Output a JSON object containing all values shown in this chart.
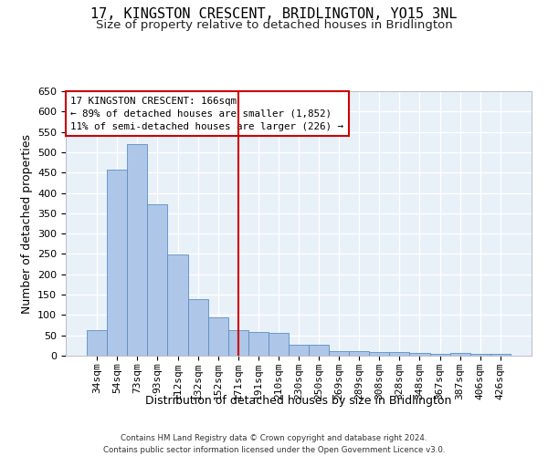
{
  "title": "17, KINGSTON CRESCENT, BRIDLINGTON, YO15 3NL",
  "subtitle": "Size of property relative to detached houses in Bridlington",
  "xlabel": "Distribution of detached houses by size in Bridlington",
  "ylabel": "Number of detached properties",
  "categories": [
    "34sqm",
    "54sqm",
    "73sqm",
    "93sqm",
    "112sqm",
    "132sqm",
    "152sqm",
    "171sqm",
    "191sqm",
    "210sqm",
    "230sqm",
    "250sqm",
    "269sqm",
    "289sqm",
    "308sqm",
    "328sqm",
    "348sqm",
    "367sqm",
    "387sqm",
    "406sqm",
    "426sqm"
  ],
  "values": [
    63,
    457,
    520,
    372,
    248,
    140,
    94,
    62,
    58,
    55,
    27,
    26,
    12,
    12,
    9,
    8,
    7,
    5,
    6,
    5,
    5
  ],
  "bar_color": "#aec6e8",
  "bar_edge_color": "#5a8fc2",
  "vline_x_index": 7,
  "vline_color": "#cc0000",
  "annotation_text": "17 KINGSTON CRESCENT: 166sqm\n← 89% of detached houses are smaller (1,852)\n11% of semi-detached houses are larger (226) →",
  "annotation_box_color": "white",
  "annotation_box_edge_color": "#cc0000",
  "ylim": [
    0,
    650
  ],
  "yticks": [
    0,
    50,
    100,
    150,
    200,
    250,
    300,
    350,
    400,
    450,
    500,
    550,
    600,
    650
  ],
  "background_color": "#e8f0f8",
  "grid_color": "white",
  "footer": "Contains HM Land Registry data © Crown copyright and database right 2024.\nContains public sector information licensed under the Open Government Licence v3.0.",
  "title_fontsize": 11,
  "subtitle_fontsize": 9.5,
  "xlabel_fontsize": 9,
  "ylabel_fontsize": 9,
  "tick_fontsize": 8
}
